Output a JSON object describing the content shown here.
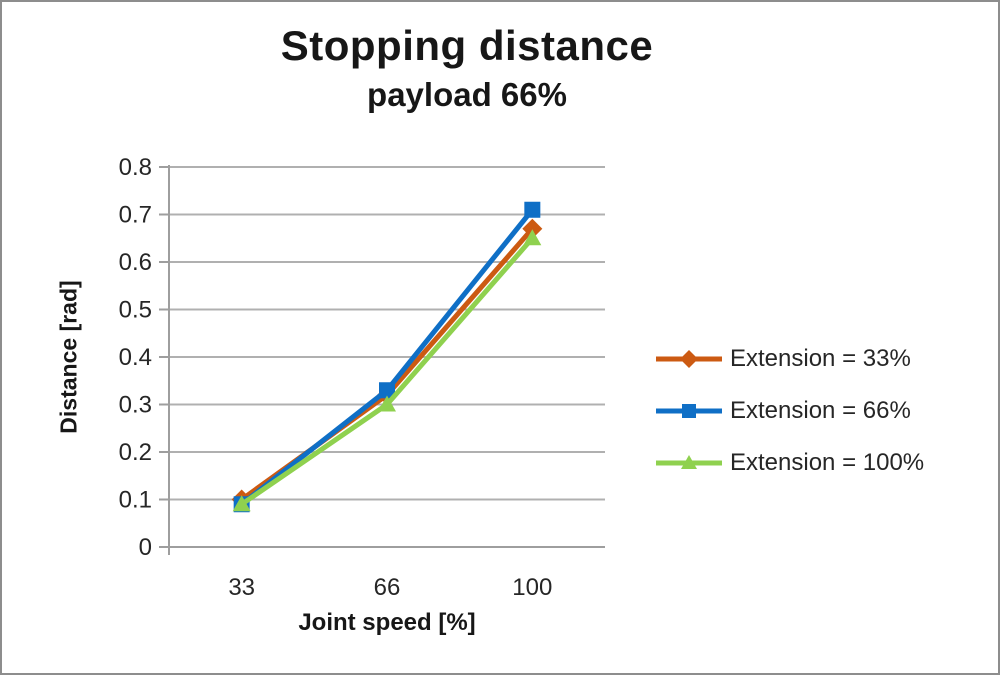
{
  "chart_data": {
    "type": "line",
    "title": "Stopping distance",
    "subtitle": "payload 66%",
    "xlabel": "Joint speed [%]",
    "ylabel": "Distance [rad]",
    "categories": [
      "33",
      "66",
      "100"
    ],
    "series": [
      {
        "name": "Extension = 33%",
        "marker": "diamond",
        "color": "#CC5A12",
        "values": [
          0.1,
          0.32,
          0.67
        ]
      },
      {
        "name": "Extension = 66%",
        "marker": "square",
        "color": "#0F6FC6",
        "values": [
          0.09,
          0.33,
          0.71
        ]
      },
      {
        "name": "Extension = 100%",
        "marker": "triangle",
        "color": "#8FD14F",
        "values": [
          0.09,
          0.3,
          0.65
        ]
      }
    ],
    "ylim": [
      0,
      0.8
    ],
    "y_ticks": [
      "0",
      "0.1",
      "0.2",
      "0.3",
      "0.4",
      "0.5",
      "0.6",
      "0.7",
      "0.8"
    ],
    "grid": "horizontal",
    "legend_position": "right",
    "gridline_color": "#B0B0B0",
    "axis_line_color": "#9E9E9E",
    "tick_label_color": "#262626"
  }
}
